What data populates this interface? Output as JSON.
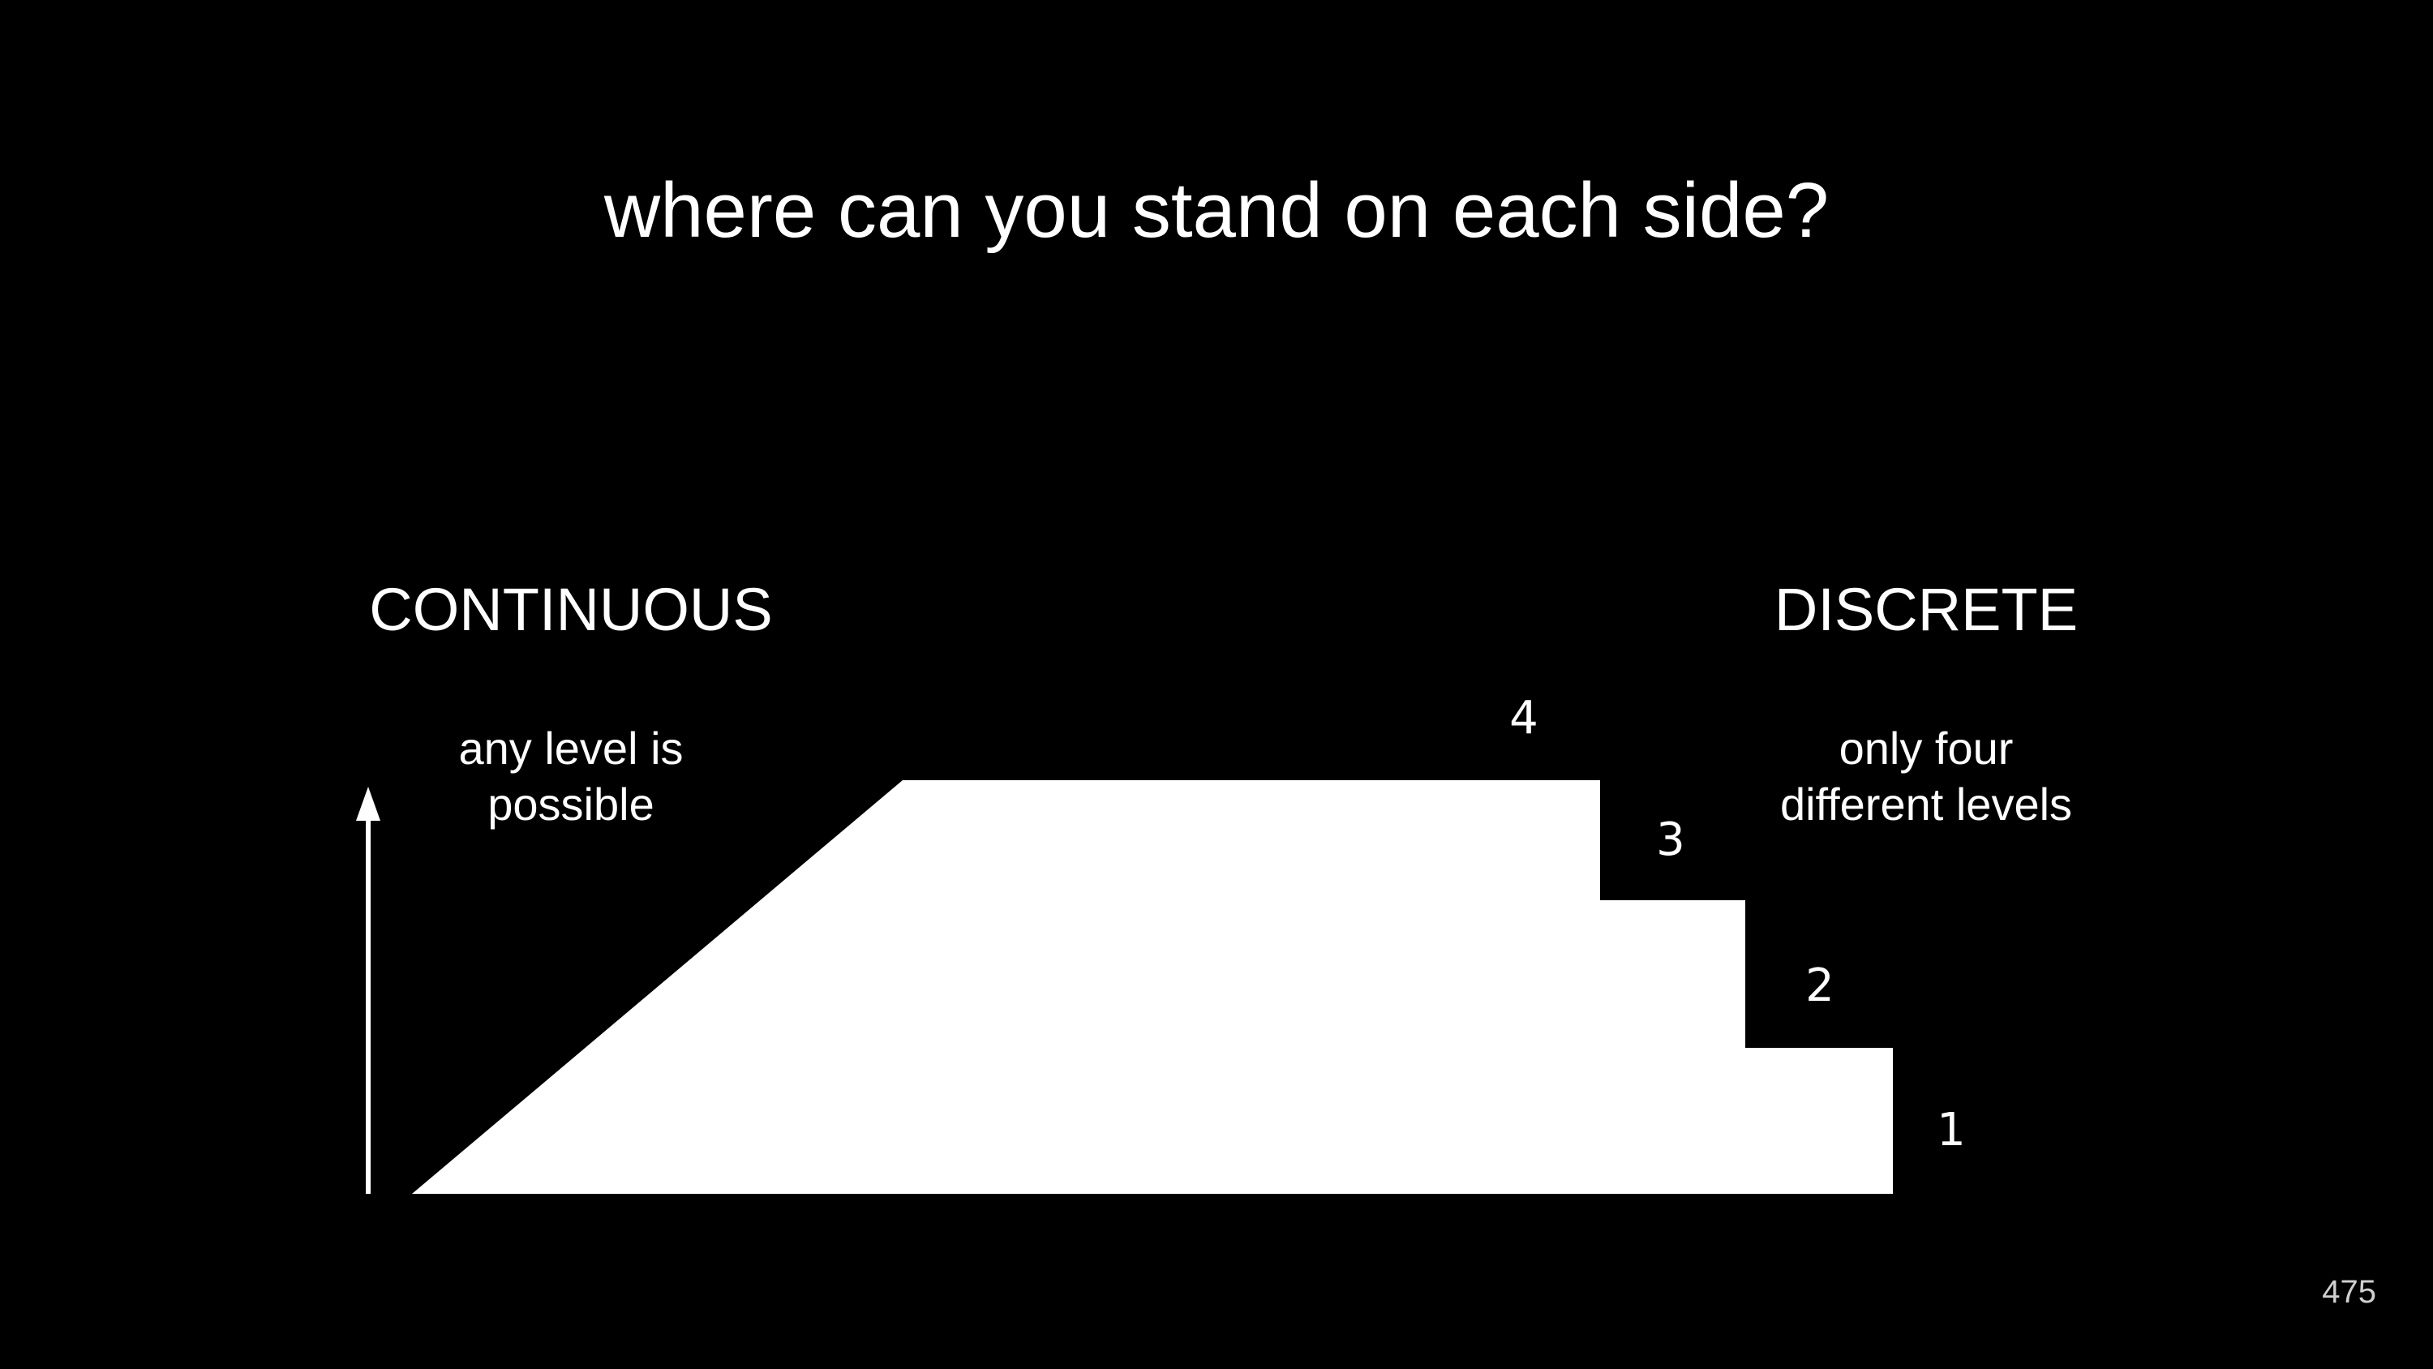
{
  "title": "where can you stand on each side?",
  "left": {
    "heading": "CONTINUOUS",
    "description_lines": [
      "any level is",
      "possible"
    ]
  },
  "right": {
    "heading": "DISCRETE",
    "description_lines": [
      "only four",
      "different levels"
    ]
  },
  "levels": [
    "4",
    "3",
    "2",
    "1"
  ],
  "page_number": "475",
  "colors": {
    "background": "#000000",
    "foreground": "#ffffff"
  }
}
